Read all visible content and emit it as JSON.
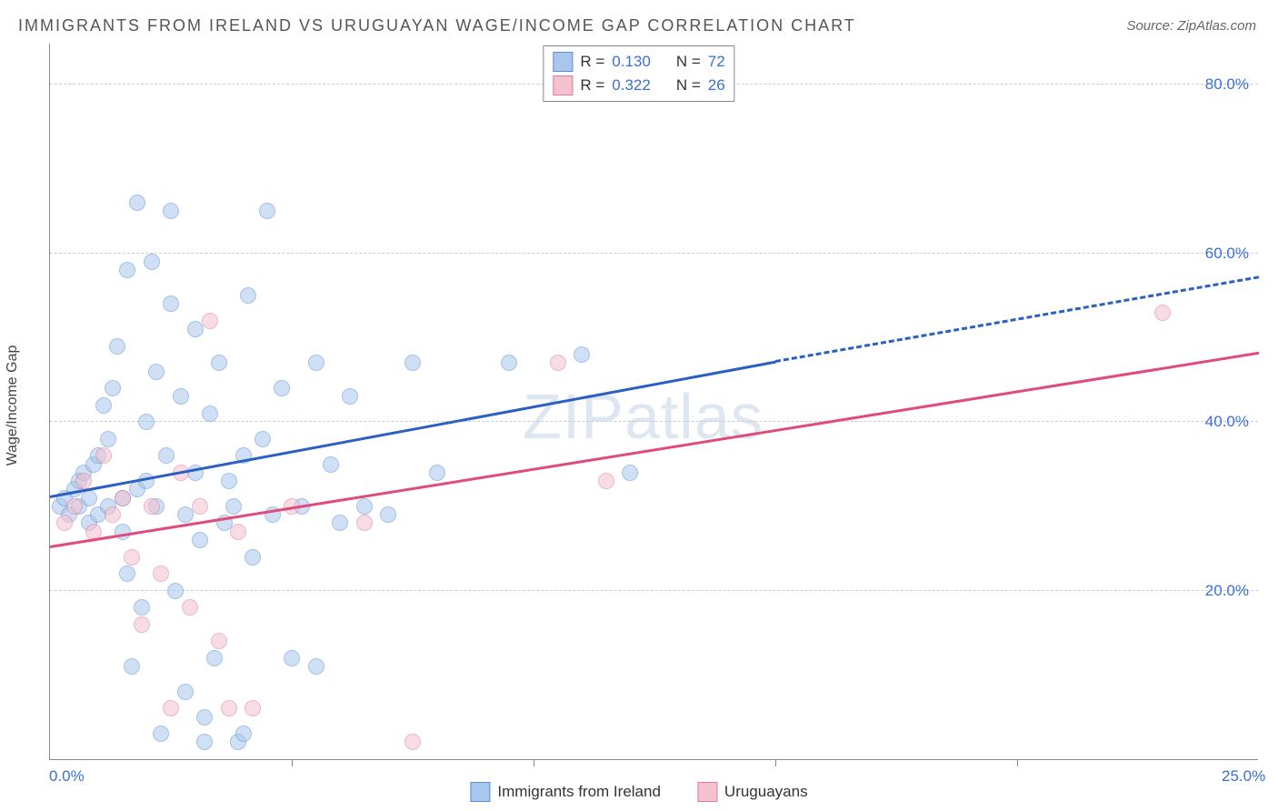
{
  "title": "IMMIGRANTS FROM IRELAND VS URUGUAYAN WAGE/INCOME GAP CORRELATION CHART",
  "source_label": "Source: ZipAtlas.com",
  "watermark": "ZIPatlas",
  "ylabel": "Wage/Income Gap",
  "chart": {
    "type": "scatter",
    "background_color": "#ffffff",
    "grid_color": "#cccccc",
    "axis_color": "#888888",
    "tick_label_color": "#3a6fd8",
    "xlim": [
      0,
      25
    ],
    "ylim": [
      0,
      85
    ],
    "yticks": [
      20,
      40,
      60,
      80
    ],
    "ytick_labels": [
      "20.0%",
      "40.0%",
      "60.0%",
      "80.0%"
    ],
    "xtick_positions": [
      0,
      25
    ],
    "xtick_labels": [
      "0.0%",
      "25.0%"
    ],
    "xtick_minor": [
      5,
      10,
      15,
      20
    ],
    "point_radius": 9,
    "point_opacity": 0.55,
    "series": [
      {
        "name": "Immigrants from Ireland",
        "color_fill": "#a9c7ec",
        "color_stroke": "#5a8fd6",
        "R": "0.130",
        "N": "72",
        "trend": {
          "x1": 0,
          "y1": 31,
          "x2": 15,
          "y2": 47,
          "x2_ext": 25,
          "y2_ext": 57,
          "color": "#2b5fc4",
          "width": 3,
          "ext_dash": true
        },
        "points": [
          [
            0.2,
            30
          ],
          [
            0.3,
            31
          ],
          [
            0.4,
            29
          ],
          [
            0.5,
            32
          ],
          [
            0.6,
            33
          ],
          [
            0.6,
            30
          ],
          [
            0.7,
            34
          ],
          [
            0.8,
            31
          ],
          [
            0.8,
            28
          ],
          [
            0.9,
            35
          ],
          [
            1.0,
            36
          ],
          [
            1.0,
            29
          ],
          [
            1.1,
            42
          ],
          [
            1.2,
            30
          ],
          [
            1.2,
            38
          ],
          [
            1.3,
            44
          ],
          [
            1.4,
            49
          ],
          [
            1.5,
            31
          ],
          [
            1.5,
            27
          ],
          [
            1.6,
            22
          ],
          [
            1.6,
            58
          ],
          [
            1.7,
            11
          ],
          [
            1.8,
            66
          ],
          [
            1.8,
            32
          ],
          [
            1.9,
            18
          ],
          [
            2.0,
            40
          ],
          [
            2.0,
            33
          ],
          [
            2.1,
            59
          ],
          [
            2.2,
            30
          ],
          [
            2.2,
            46
          ],
          [
            2.3,
            3
          ],
          [
            2.4,
            36
          ],
          [
            2.5,
            65
          ],
          [
            2.5,
            54
          ],
          [
            2.6,
            20
          ],
          [
            2.7,
            43
          ],
          [
            2.8,
            8
          ],
          [
            2.8,
            29
          ],
          [
            3.0,
            51
          ],
          [
            3.0,
            34
          ],
          [
            3.1,
            26
          ],
          [
            3.2,
            5
          ],
          [
            3.3,
            41
          ],
          [
            3.4,
            12
          ],
          [
            3.5,
            47
          ],
          [
            3.6,
            28
          ],
          [
            3.7,
            33
          ],
          [
            3.8,
            30
          ],
          [
            3.9,
            2
          ],
          [
            4.0,
            36
          ],
          [
            4.1,
            55
          ],
          [
            4.2,
            24
          ],
          [
            4.4,
            38
          ],
          [
            4.5,
            65
          ],
          [
            4.6,
            29
          ],
          [
            4.8,
            44
          ],
          [
            5.0,
            12
          ],
          [
            5.2,
            30
          ],
          [
            5.5,
            11
          ],
          [
            5.5,
            47
          ],
          [
            5.8,
            35
          ],
          [
            6.0,
            28
          ],
          [
            6.2,
            43
          ],
          [
            6.5,
            30
          ],
          [
            7.0,
            29
          ],
          [
            7.5,
            47
          ],
          [
            8.0,
            34
          ],
          [
            9.5,
            47
          ],
          [
            11.0,
            48
          ],
          [
            12.0,
            34
          ],
          [
            4.0,
            3
          ],
          [
            3.2,
            2
          ]
        ]
      },
      {
        "name": "Uruguayans",
        "color_fill": "#f4c1ce",
        "color_stroke": "#e07b9a",
        "R": "0.322",
        "N": "26",
        "trend": {
          "x1": 0,
          "y1": 25,
          "x2": 25,
          "y2": 48,
          "color": "#e14b7b",
          "width": 3,
          "ext_dash": false
        },
        "points": [
          [
            0.3,
            28
          ],
          [
            0.5,
            30
          ],
          [
            0.7,
            33
          ],
          [
            0.9,
            27
          ],
          [
            1.1,
            36
          ],
          [
            1.3,
            29
          ],
          [
            1.5,
            31
          ],
          [
            1.7,
            24
          ],
          [
            1.9,
            16
          ],
          [
            2.1,
            30
          ],
          [
            2.3,
            22
          ],
          [
            2.5,
            6
          ],
          [
            2.7,
            34
          ],
          [
            2.9,
            18
          ],
          [
            3.1,
            30
          ],
          [
            3.3,
            52
          ],
          [
            3.5,
            14
          ],
          [
            3.7,
            6
          ],
          [
            3.9,
            27
          ],
          [
            4.2,
            6
          ],
          [
            5.0,
            30
          ],
          [
            6.5,
            28
          ],
          [
            7.5,
            2
          ],
          [
            10.5,
            47
          ],
          [
            11.5,
            33
          ],
          [
            23.0,
            53
          ]
        ]
      }
    ],
    "legend_top": [
      {
        "swatch_fill": "#a9c7ec",
        "swatch_stroke": "#5a8fd6",
        "R_label": "R =",
        "R_val": "0.130",
        "N_label": "N =",
        "N_val": "72"
      },
      {
        "swatch_fill": "#f4c1ce",
        "swatch_stroke": "#e07b9a",
        "R_label": "R =",
        "R_val": "0.322",
        "N_label": "N =",
        "N_val": "26"
      }
    ],
    "legend_bottom": [
      {
        "swatch_fill": "#a9c7ec",
        "swatch_stroke": "#5a8fd6",
        "label": "Immigrants from Ireland"
      },
      {
        "swatch_fill": "#f4c1ce",
        "swatch_stroke": "#e07b9a",
        "label": "Uruguayans"
      }
    ]
  }
}
